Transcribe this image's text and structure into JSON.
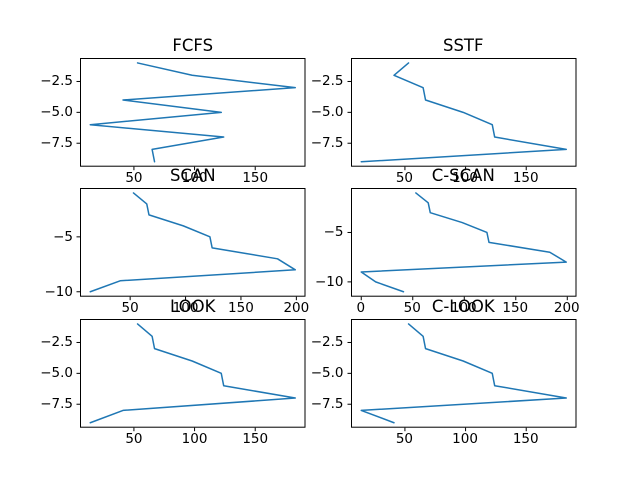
{
  "figure": {
    "background": "#ffffff",
    "description": "Six line subplots comparing disk scheduling algorithms; x = cylinder/track number, y = negative service step index"
  },
  "chart_data": [
    {
      "type": "line",
      "title": "FCFS",
      "x": [
        53,
        98,
        183,
        41,
        122,
        14,
        124,
        65,
        67
      ],
      "y": [
        -1,
        -2,
        -3,
        -4,
        -5,
        -6,
        -7,
        -8,
        -9
      ],
      "xlim": [
        5.55,
        191.45
      ],
      "ylim": [
        -9.4,
        -0.6
      ],
      "xticks": {
        "values": [
          50,
          100,
          150
        ],
        "labels": [
          "50",
          "100",
          "150"
        ]
      },
      "yticks": {
        "values": [
          -2.5,
          -5.0,
          -7.5
        ],
        "labels": [
          "−2.5",
          "−5.0",
          "−7.5"
        ]
      },
      "line_color": "#1f77b4",
      "grid": false,
      "legend": null
    },
    {
      "type": "line",
      "title": "SSTF",
      "x": [
        53,
        41,
        65,
        67,
        98,
        122,
        124,
        183,
        14
      ],
      "y": [
        -1,
        -2,
        -3,
        -4,
        -5,
        -6,
        -7,
        -8,
        -9
      ],
      "xlim": [
        5.55,
        191.45
      ],
      "ylim": [
        -9.4,
        -0.6
      ],
      "xticks": {
        "values": [
          50,
          100,
          150
        ],
        "labels": [
          "50",
          "100",
          "150"
        ]
      },
      "yticks": {
        "values": [
          -2.5,
          -5.0,
          -7.5
        ],
        "labels": [
          "−2.5",
          "−5.0",
          "−7.5"
        ]
      },
      "line_color": "#1f77b4",
      "grid": false,
      "legend": null
    },
    {
      "type": "line",
      "title": "SCAN",
      "x": [
        53,
        65,
        67,
        98,
        122,
        124,
        183,
        199,
        41,
        14
      ],
      "y": [
        -1,
        -2,
        -3,
        -4,
        -5,
        -6,
        -7,
        -8,
        -9,
        -10
      ],
      "xlim": [
        4.75,
        208.25
      ],
      "ylim": [
        -10.45,
        -0.55
      ],
      "xticks": {
        "values": [
          50,
          100,
          150,
          200
        ],
        "labels": [
          "50",
          "100",
          "150",
          "200"
        ]
      },
      "yticks": {
        "values": [
          -5,
          -10
        ],
        "labels": [
          "−5",
          "−10"
        ]
      },
      "line_color": "#1f77b4",
      "grid": false,
      "legend": null
    },
    {
      "type": "line",
      "title": "C-SCAN",
      "x": [
        53,
        65,
        67,
        98,
        122,
        124,
        183,
        199,
        0,
        14,
        41
      ],
      "y": [
        -1,
        -2,
        -3,
        -4,
        -5,
        -6,
        -7,
        -8,
        -9,
        -10,
        -11
      ],
      "xlim": [
        -9.95,
        208.95
      ],
      "ylim": [
        -11.5,
        -0.5
      ],
      "xticks": {
        "values": [
          0,
          50,
          100,
          150,
          200
        ],
        "labels": [
          "0",
          "50",
          "100",
          "150",
          "200"
        ]
      },
      "yticks": {
        "values": [
          -5,
          -10
        ],
        "labels": [
          "−5",
          "−10"
        ]
      },
      "line_color": "#1f77b4",
      "grid": false,
      "legend": null
    },
    {
      "type": "line",
      "title": "LOOK",
      "x": [
        53,
        65,
        67,
        98,
        122,
        124,
        183,
        41,
        14
      ],
      "y": [
        -1,
        -2,
        -3,
        -4,
        -5,
        -6,
        -7,
        -8,
        -9
      ],
      "xlim": [
        5.55,
        191.45
      ],
      "ylim": [
        -9.4,
        -0.6
      ],
      "xticks": {
        "values": [
          50,
          100,
          150
        ],
        "labels": [
          "50",
          "100",
          "150"
        ]
      },
      "yticks": {
        "values": [
          -2.5,
          -5.0,
          -7.5
        ],
        "labels": [
          "−2.5",
          "−5.0",
          "−7.5"
        ]
      },
      "line_color": "#1f77b4",
      "grid": false,
      "legend": null
    },
    {
      "type": "line",
      "title": "C-LOOK",
      "x": [
        53,
        65,
        67,
        98,
        122,
        124,
        183,
        14,
        41
      ],
      "y": [
        -1,
        -2,
        -3,
        -4,
        -5,
        -6,
        -7,
        -8,
        -9
      ],
      "xlim": [
        5.55,
        191.45
      ],
      "ylim": [
        -9.4,
        -0.6
      ],
      "xticks": {
        "values": [
          50,
          100,
          150
        ],
        "labels": [
          "50",
          "100",
          "150"
        ]
      },
      "yticks": {
        "values": [
          -2.5,
          -5.0,
          -7.5
        ],
        "labels": [
          "−2.5",
          "−5.0",
          "−7.5"
        ]
      },
      "line_color": "#1f77b4",
      "grid": false,
      "legend": null
    }
  ]
}
